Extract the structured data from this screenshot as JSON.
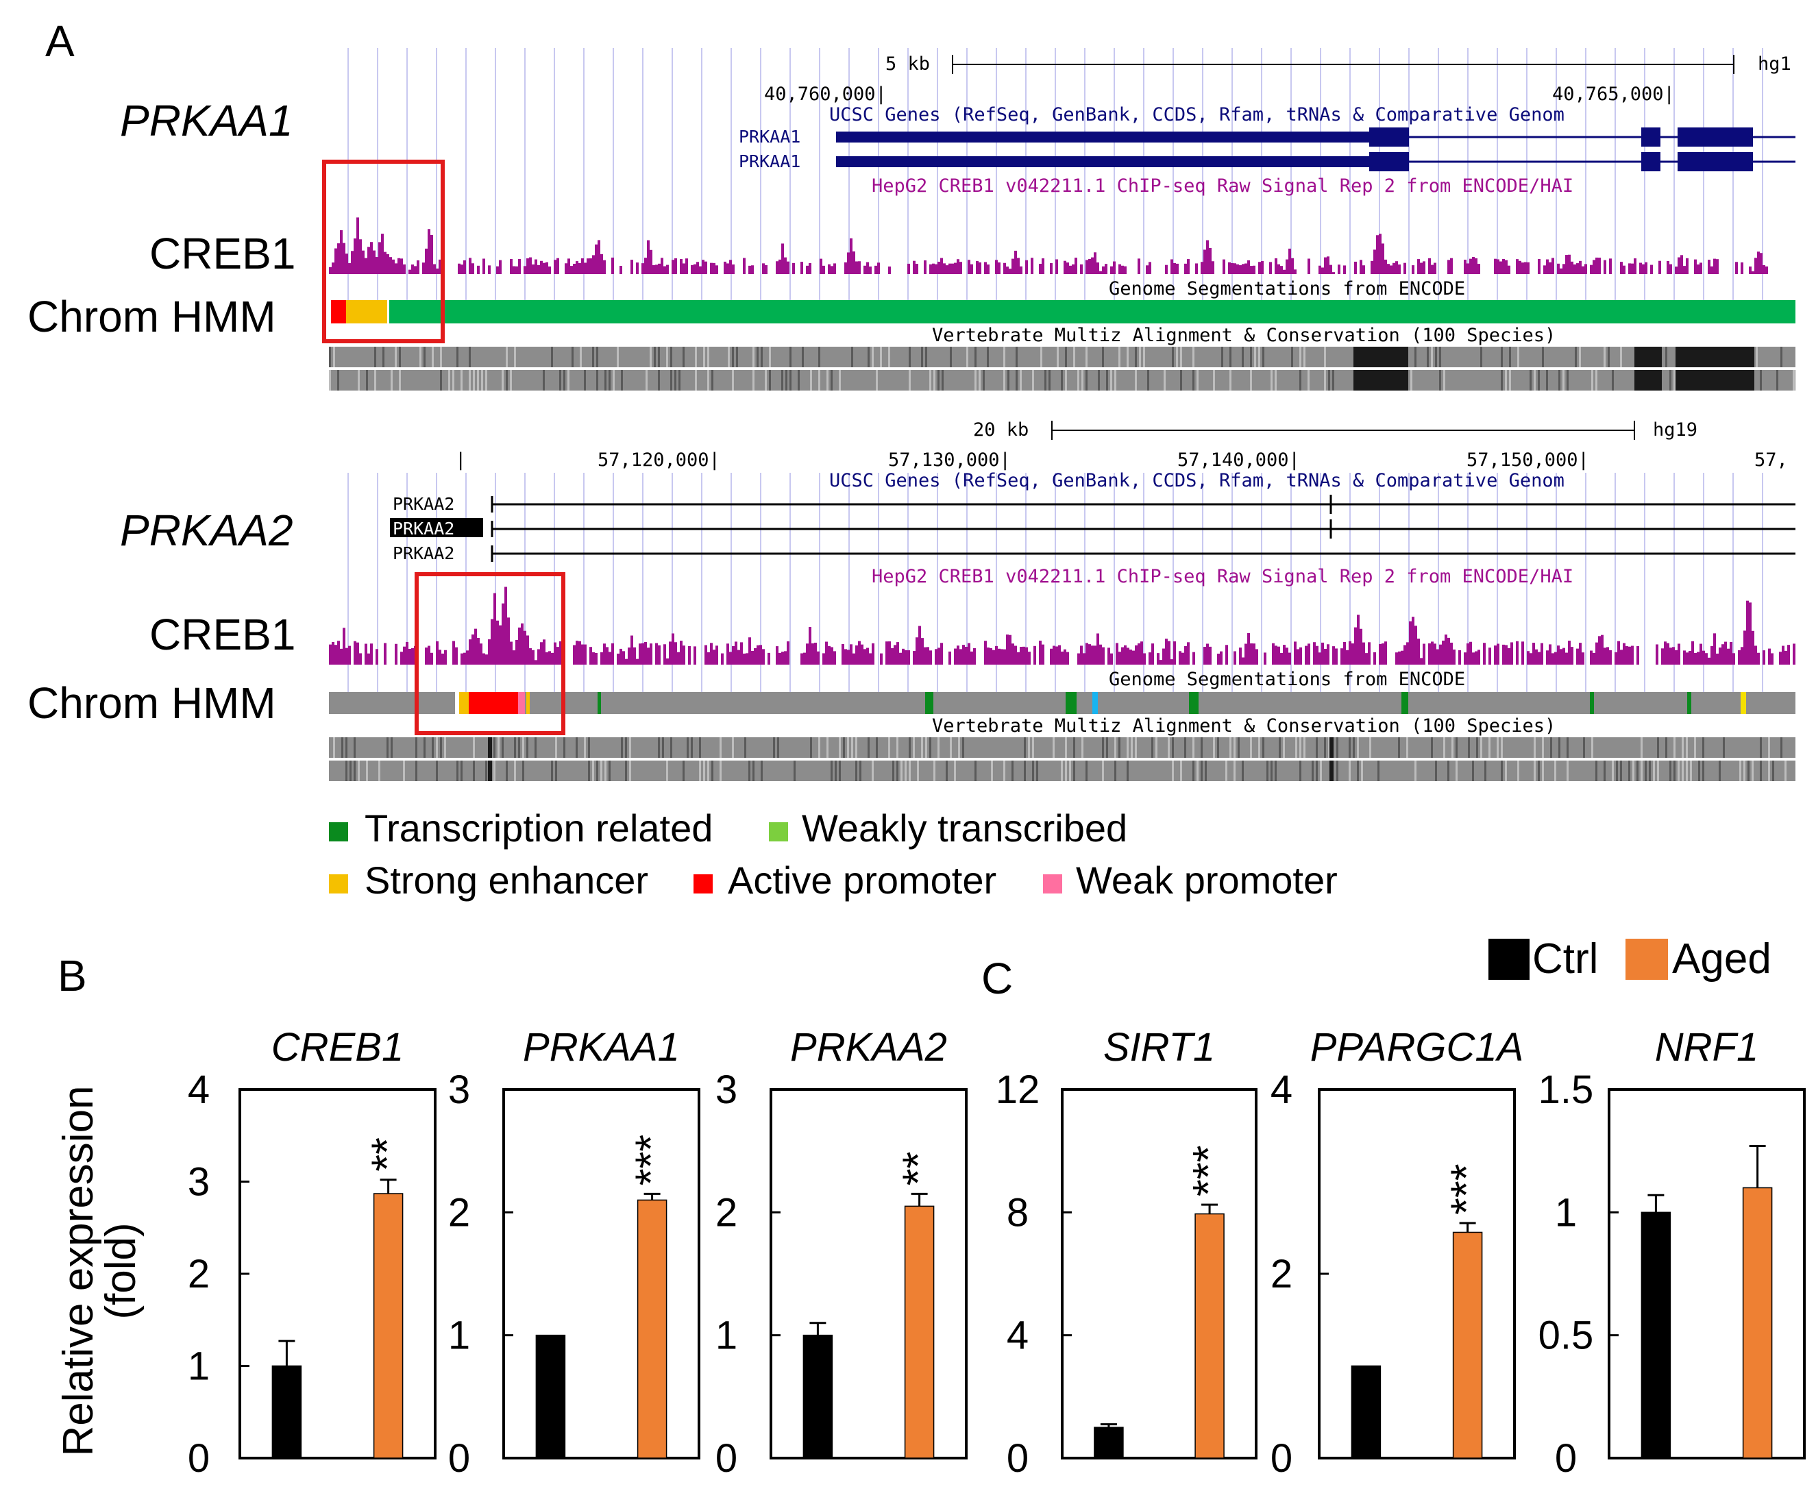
{
  "panel_labels": {
    "a": "A",
    "b": "B",
    "c": "C"
  },
  "tracks": {
    "prkaa1": {
      "gene_label": "PRKAA1",
      "scale_label": "5 kb",
      "assembly": "hg1",
      "coords": [
        "40,760,000|",
        "40,765,000|"
      ],
      "ucsc_genes": "UCSC Genes (RefSeq, GenBank, CCDS, Rfam, tRNAs & Comparative Genom",
      "transcripts": [
        "PRKAA1",
        "PRKAA1"
      ],
      "chip_title": "HepG2 CREB1 v042211.1 ChIP-seq Raw Signal Rep 2 from ENCODE/HAI",
      "segmentation_title": "Genome Segmentations from ENCODE",
      "conservation_title": "Vertebrate Multiz Alignment & Conservation (100 Species)",
      "creb1_label": "CREB1",
      "hmm_label": "Chrom HMM"
    },
    "prkaa2": {
      "gene_label": "PRKAA2",
      "scale_label": "20 kb",
      "assembly": "hg19",
      "coords": [
        "|",
        "57,120,000|",
        "57,130,000|",
        "57,140,000|",
        "57,150,000|",
        "57,"
      ],
      "ucsc_genes": "UCSC Genes (RefSeq, GenBank, CCDS, Rfam, tRNAs & Comparative Genom",
      "transcripts": [
        "PRKAA2",
        "PRKAA2",
        "PRKAA2"
      ],
      "chip_title": "HepG2 CREB1 v042211.1 ChIP-seq Raw Signal Rep 2 from ENCODE/HAI",
      "segmentation_title": "Genome Segmentations from ENCODE",
      "conservation_title": "Vertebrate Multiz Alignment & Conservation (100 Species)",
      "creb1_label": "CREB1",
      "hmm_label": "Chrom HMM"
    }
  },
  "hmm_legend": [
    {
      "label": "Transcription related",
      "color": "#0a8a1e"
    },
    {
      "label": "Weakly transcribed",
      "color": "#7ccf3e"
    },
    {
      "label": "Strong enhancer",
      "color": "#f5c000"
    },
    {
      "label": "Active promoter",
      "color": "#ff0000"
    },
    {
      "label": "Weak promoter",
      "color": "#ff6fa0"
    }
  ],
  "bar_legend": [
    {
      "label": "Ctrl",
      "color": "#000000"
    },
    {
      "label": "Aged",
      "color": "#ee8033"
    }
  ],
  "y_axis_title": [
    "Relative expression",
    "(fold)"
  ],
  "colors": {
    "chip": "#a0108f",
    "gene": "#0b0b7a",
    "text_blue": "#0b0b7a",
    "text_purple": "#a0108f",
    "box": "#e21b1b",
    "grid": "#c8c8f0"
  },
  "chart_data": [
    {
      "type": "bar",
      "title": "CREB1",
      "categories": [
        "Ctrl",
        "Aged"
      ],
      "values": [
        1.0,
        2.87
      ],
      "errors": [
        0.27,
        0.15
      ],
      "ylim": [
        0,
        4
      ],
      "yticks": [
        "0",
        "1",
        "2",
        "3",
        "4"
      ],
      "significance": "**",
      "ylabel": "Relative expression (fold)"
    },
    {
      "type": "bar",
      "title": "PRKAA1",
      "categories": [
        "Ctrl",
        "Aged"
      ],
      "values": [
        1.0,
        2.1
      ],
      "errors": [
        0.0,
        0.05
      ],
      "ylim": [
        0,
        3
      ],
      "yticks": [
        "0",
        "1",
        "2",
        "3"
      ],
      "significance": "***"
    },
    {
      "type": "bar",
      "title": "PRKAA2",
      "categories": [
        "Ctrl",
        "Aged"
      ],
      "values": [
        1.0,
        2.05
      ],
      "errors": [
        0.1,
        0.1
      ],
      "ylim": [
        0,
        3
      ],
      "yticks": [
        "0",
        "1",
        "2",
        "3"
      ],
      "significance": "**"
    },
    {
      "type": "bar",
      "title": "SIRT1",
      "categories": [
        "Ctrl",
        "Aged"
      ],
      "values": [
        1.0,
        7.95
      ],
      "errors": [
        0.1,
        0.3
      ],
      "ylim": [
        0,
        12
      ],
      "yticks": [
        "0",
        "4",
        "8",
        "12"
      ],
      "significance": "***"
    },
    {
      "type": "bar",
      "title": "PPARGC1A",
      "categories": [
        "Ctrl",
        "Aged"
      ],
      "values": [
        1.0,
        2.45
      ],
      "errors": [
        0.0,
        0.1
      ],
      "ylim": [
        0,
        4
      ],
      "yticks": [
        "0",
        "2",
        "4"
      ],
      "significance": "***"
    },
    {
      "type": "bar",
      "title": "NRF1",
      "categories": [
        "Ctrl",
        "Aged"
      ],
      "values": [
        1.0,
        1.1
      ],
      "errors": [
        0.07,
        0.17
      ],
      "ylim": [
        0,
        1.5
      ],
      "yticks": [
        "0",
        "0.5",
        "1",
        "1.5"
      ],
      "significance": ""
    }
  ]
}
